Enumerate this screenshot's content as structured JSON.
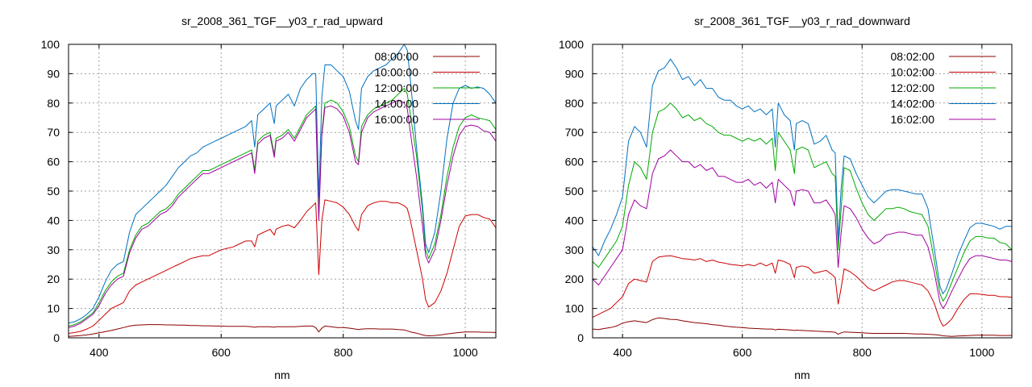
{
  "chart_data": [
    {
      "type": "line",
      "title": "sr_2008_361_TGF__y03_r_rad_upward",
      "xlabel": "nm",
      "ylabel": "",
      "xlim": [
        350,
        1050
      ],
      "ylim": [
        0,
        100
      ],
      "xticks": [
        400,
        600,
        800,
        1000
      ],
      "yticks": [
        0,
        10,
        20,
        30,
        40,
        50,
        60,
        70,
        80,
        90,
        100
      ],
      "grid": true,
      "legend_position": "top-right",
      "x": [
        350,
        360,
        370,
        380,
        390,
        400,
        410,
        420,
        430,
        440,
        450,
        460,
        470,
        480,
        490,
        500,
        510,
        520,
        530,
        540,
        550,
        560,
        570,
        580,
        590,
        600,
        610,
        620,
        630,
        640,
        650,
        655,
        660,
        670,
        680,
        687,
        690,
        700,
        710,
        720,
        730,
        740,
        750,
        755,
        760,
        765,
        770,
        780,
        790,
        800,
        810,
        820,
        825,
        830,
        840,
        850,
        860,
        870,
        880,
        890,
        900,
        905,
        910,
        920,
        930,
        935,
        940,
        950,
        960,
        970,
        980,
        990,
        1000,
        1010,
        1020,
        1030,
        1040,
        1050
      ],
      "series": [
        {
          "name": "08:00:00",
          "color": "#8b0000",
          "values": [
            0.5,
            0.6,
            0.8,
            1.0,
            1.3,
            1.7,
            2.1,
            2.5,
            3.0,
            3.5,
            4.0,
            4.3,
            4.4,
            4.5,
            4.5,
            4.5,
            4.4,
            4.4,
            4.3,
            4.3,
            4.2,
            4.2,
            4.1,
            4.1,
            4.0,
            4.0,
            3.9,
            3.9,
            3.9,
            3.9,
            3.8,
            3.6,
            3.8,
            3.8,
            3.8,
            3.6,
            3.8,
            3.8,
            3.8,
            3.8,
            3.9,
            4.0,
            4.0,
            3.5,
            2.0,
            3.3,
            4.0,
            3.8,
            3.5,
            3.5,
            3.3,
            3.0,
            2.8,
            3.0,
            3.1,
            3.1,
            3.0,
            3.0,
            3.0,
            2.8,
            2.7,
            2.4,
            2.0,
            1.6,
            1.0,
            0.8,
            0.7,
            0.8,
            1.0,
            1.3,
            1.6,
            1.8,
            2.0,
            2.0,
            2.0,
            1.9,
            1.9,
            1.8
          ]
        },
        {
          "name": "10:00:00",
          "color": "#cc0000",
          "values": [
            1.5,
            1.8,
            2.2,
            3.0,
            4.0,
            6.0,
            8.0,
            10.0,
            11.0,
            12.0,
            16.0,
            18.0,
            19.0,
            20.0,
            21.0,
            22.0,
            23.0,
            24.0,
            25.0,
            26.0,
            27.0,
            27.5,
            28.0,
            28.0,
            29.0,
            30.0,
            30.5,
            31.0,
            32.0,
            33.0,
            33.0,
            31.0,
            35.0,
            36.0,
            37.0,
            35.0,
            37.0,
            38.0,
            38.5,
            37.5,
            40.0,
            43.0,
            45.0,
            46.0,
            21.5,
            40.0,
            47.0,
            46.5,
            46.0,
            44.5,
            42.0,
            38.0,
            36.5,
            42.0,
            45.0,
            46.0,
            46.5,
            46.5,
            46.0,
            46.0,
            45.0,
            44.0,
            40.0,
            30.0,
            20.0,
            13.0,
            10.5,
            12.0,
            16.0,
            22.0,
            30.0,
            38.0,
            41.5,
            42.0,
            42.0,
            41.0,
            40.5,
            37.5
          ]
        },
        {
          "name": "12:00:00",
          "color": "#00aa00",
          "values": [
            4.0,
            4.5,
            5.5,
            7.0,
            8.5,
            12.0,
            16.0,
            19.0,
            21.0,
            22.0,
            30.0,
            35.0,
            38.0,
            39.0,
            41.0,
            43.0,
            44.0,
            46.0,
            49.0,
            51.0,
            53.0,
            55.0,
            57.0,
            57.0,
            58.0,
            59.0,
            60.0,
            61.0,
            62.0,
            63.0,
            64.0,
            57.0,
            67.0,
            69.0,
            70.0,
            62.5,
            68.0,
            69.0,
            71.0,
            68.0,
            72.0,
            76.0,
            78.0,
            79.0,
            42.0,
            70.0,
            80.0,
            81.0,
            80.0,
            77.0,
            72.0,
            62.0,
            60.0,
            72.0,
            76.0,
            78.0,
            79.0,
            80.0,
            81.0,
            83.0,
            85.0,
            83.0,
            76.0,
            62.0,
            43.0,
            30.0,
            27.0,
            32.0,
            42.0,
            55.0,
            65.0,
            72.0,
            75.0,
            76.0,
            75.0,
            74.5,
            74.0,
            71.0
          ]
        },
        {
          "name": "14:00:00",
          "color": "#0070c0",
          "values": [
            5.0,
            5.5,
            6.5,
            8.0,
            10.0,
            14.0,
            19.0,
            23.0,
            25.0,
            26.0,
            36.0,
            42.0,
            44.0,
            46.0,
            48.0,
            50.0,
            52.0,
            55.0,
            58.0,
            60.0,
            62.0,
            63.0,
            65.0,
            66.0,
            67.0,
            68.0,
            69.0,
            70.0,
            71.0,
            72.0,
            74.0,
            65.0,
            76.0,
            78.0,
            80.0,
            73.0,
            79.0,
            81.0,
            83.0,
            79.0,
            85.0,
            88.0,
            90.0,
            90.0,
            48.0,
            82.0,
            93.0,
            93.0,
            91.0,
            89.0,
            84.0,
            74.0,
            71.0,
            85.0,
            89.0,
            91.0,
            92.0,
            93.0,
            95.0,
            97.0,
            100.0,
            98.0,
            88.0,
            65.0,
            45.0,
            32.0,
            29.0,
            36.0,
            50.0,
            68.0,
            80.0,
            85.0,
            86.0,
            85.0,
            85.5,
            85.0,
            83.0,
            80.0
          ]
        },
        {
          "name": "16:00:00",
          "color": "#a000a0",
          "values": [
            3.5,
            4.0,
            5.0,
            6.5,
            8.0,
            11.0,
            15.0,
            18.0,
            20.0,
            21.0,
            29.0,
            34.0,
            37.0,
            38.0,
            40.0,
            42.0,
            43.0,
            45.0,
            48.0,
            50.0,
            52.0,
            54.0,
            56.0,
            56.0,
            57.0,
            58.0,
            59.0,
            60.0,
            61.0,
            62.0,
            63.0,
            56.0,
            66.0,
            68.0,
            69.0,
            61.5,
            67.0,
            68.0,
            70.0,
            67.0,
            71.0,
            75.0,
            77.0,
            78.0,
            40.0,
            69.0,
            78.5,
            79.0,
            78.0,
            75.5,
            70.0,
            60.0,
            59.0,
            70.0,
            75.0,
            77.0,
            78.0,
            79.0,
            80.0,
            81.0,
            80.0,
            78.0,
            70.0,
            55.0,
            38.0,
            28.0,
            25.5,
            30.0,
            40.0,
            52.0,
            62.0,
            69.0,
            72.0,
            72.5,
            72.0,
            70.5,
            70.0,
            67.0
          ]
        }
      ]
    },
    {
      "type": "line",
      "title": "sr_2008_361_TGF__y03_r_rad_downward",
      "xlabel": "nm",
      "ylabel": "",
      "xlim": [
        350,
        1050
      ],
      "ylim": [
        0,
        1000
      ],
      "xticks": [
        400,
        600,
        800,
        1000
      ],
      "yticks": [
        0,
        100,
        200,
        300,
        400,
        500,
        600,
        700,
        800,
        900,
        1000
      ],
      "grid": true,
      "legend_position": "top-right",
      "x": [
        350,
        360,
        370,
        380,
        390,
        400,
        410,
        420,
        430,
        440,
        450,
        460,
        470,
        480,
        490,
        500,
        510,
        520,
        530,
        540,
        550,
        560,
        570,
        580,
        590,
        600,
        610,
        620,
        630,
        640,
        650,
        655,
        660,
        670,
        680,
        687,
        690,
        700,
        710,
        720,
        730,
        740,
        750,
        755,
        760,
        765,
        770,
        780,
        790,
        800,
        810,
        820,
        830,
        840,
        850,
        860,
        870,
        880,
        890,
        900,
        910,
        920,
        930,
        935,
        940,
        950,
        960,
        970,
        980,
        990,
        1000,
        1010,
        1020,
        1030,
        1040,
        1050
      ],
      "series": [
        {
          "name": "08:02:00",
          "color": "#8b0000",
          "values": [
            30,
            28,
            32,
            35,
            40,
            50,
            55,
            58,
            55,
            52,
            62,
            68,
            66,
            63,
            62,
            58,
            55,
            52,
            50,
            48,
            45,
            43,
            40,
            38,
            36,
            35,
            33,
            32,
            31,
            30,
            30,
            27,
            29,
            28,
            27,
            25,
            26,
            25,
            24,
            23,
            22,
            21,
            20,
            19,
            12,
            17,
            20,
            19,
            18,
            17,
            16,
            15,
            15,
            15,
            15,
            15,
            15,
            14,
            13,
            13,
            12,
            11,
            9,
            7,
            6,
            5,
            6,
            7,
            8,
            9,
            9,
            9,
            9,
            8,
            8,
            8
          ]
        },
        {
          "name": "10:02:00",
          "color": "#cc0000",
          "values": [
            70,
            80,
            90,
            100,
            120,
            140,
            185,
            200,
            195,
            190,
            260,
            275,
            278,
            280,
            275,
            270,
            268,
            265,
            270,
            260,
            265,
            258,
            255,
            250,
            248,
            245,
            250,
            245,
            255,
            245,
            255,
            220,
            265,
            260,
            250,
            205,
            240,
            245,
            240,
            220,
            225,
            230,
            215,
            205,
            115,
            170,
            235,
            225,
            210,
            190,
            170,
            160,
            170,
            180,
            190,
            195,
            195,
            190,
            185,
            180,
            160,
            120,
            60,
            40,
            45,
            65,
            100,
            130,
            150,
            150,
            148,
            145,
            145,
            140,
            140,
            138
          ]
        },
        {
          "name": "12:02:00",
          "color": "#00aa00",
          "values": [
            260,
            240,
            270,
            300,
            330,
            380,
            520,
            600,
            580,
            540,
            700,
            770,
            780,
            800,
            780,
            750,
            760,
            740,
            750,
            730,
            720,
            700,
            690,
            690,
            680,
            670,
            680,
            670,
            680,
            660,
            680,
            570,
            700,
            670,
            640,
            560,
            640,
            650,
            640,
            580,
            590,
            600,
            560,
            550,
            300,
            440,
            580,
            570,
            510,
            460,
            420,
            400,
            420,
            440,
            440,
            445,
            440,
            430,
            425,
            420,
            380,
            270,
            150,
            125,
            140,
            190,
            240,
            290,
            330,
            345,
            345,
            340,
            340,
            325,
            320,
            300
          ]
        },
        {
          "name": "14:02:00",
          "color": "#0070c0",
          "values": [
            310,
            280,
            330,
            370,
            420,
            480,
            670,
            720,
            700,
            650,
            860,
            910,
            920,
            950,
            920,
            880,
            890,
            860,
            880,
            850,
            850,
            820,
            810,
            810,
            790,
            780,
            790,
            770,
            780,
            760,
            780,
            650,
            800,
            760,
            740,
            640,
            730,
            740,
            730,
            660,
            670,
            690,
            640,
            630,
            330,
            510,
            620,
            610,
            560,
            520,
            480,
            460,
            480,
            500,
            505,
            505,
            500,
            495,
            490,
            490,
            440,
            310,
            175,
            150,
            165,
            220,
            280,
            330,
            375,
            390,
            390,
            385,
            380,
            370,
            380,
            380
          ]
        },
        {
          "name": "16:02:00",
          "color": "#a000a0",
          "values": [
            200,
            180,
            210,
            240,
            270,
            300,
            420,
            470,
            450,
            440,
            560,
            610,
            620,
            640,
            620,
            600,
            600,
            580,
            590,
            570,
            580,
            550,
            550,
            540,
            530,
            530,
            540,
            520,
            530,
            510,
            530,
            460,
            540,
            520,
            500,
            450,
            500,
            505,
            500,
            460,
            460,
            470,
            440,
            420,
            240,
            360,
            450,
            440,
            410,
            370,
            340,
            320,
            330,
            350,
            355,
            360,
            360,
            355,
            350,
            350,
            310,
            230,
            120,
            100,
            115,
            160,
            200,
            240,
            270,
            280,
            280,
            275,
            270,
            265,
            265,
            260
          ]
        }
      ]
    }
  ]
}
